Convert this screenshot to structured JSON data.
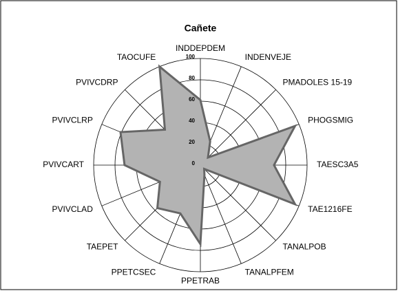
{
  "chart_data": {
    "type": "radar",
    "title": "Cañete",
    "categories": [
      "INDDEPDEM",
      "INDENVEJE",
      "PMADOLES 15-19",
      "PHOGSMIG",
      "TAESC3A5",
      "TAE1216FE",
      "TANALPOB",
      "TANALPFEM",
      "PPETRAB",
      "PPETCSEC",
      "TAEPET",
      "PVIVCLAD",
      "PVIVCART",
      "PVIVCLRP",
      "PVIVCDRP",
      "TAOCUFE"
    ],
    "values": [
      61,
      24,
      10,
      96,
      69,
      96,
      5,
      10,
      74,
      49,
      57,
      41,
      71,
      81,
      47,
      100
    ],
    "color": "#b3b3b3",
    "line_color": "#666666",
    "ylim": [
      0,
      100
    ],
    "yticks": [
      0,
      20,
      40,
      60,
      80,
      100
    ],
    "grid": true
  }
}
